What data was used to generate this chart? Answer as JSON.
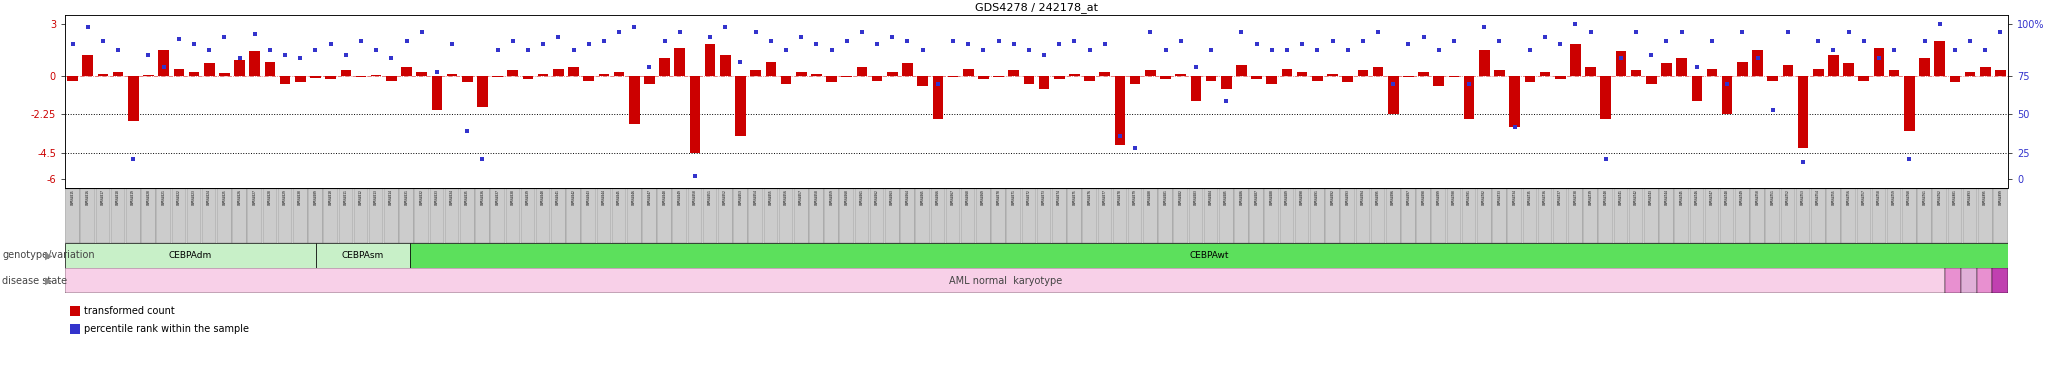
{
  "title": "GDS4278 / 242178_at",
  "left_ylim": [
    -6.5,
    3.5
  ],
  "left_yticks": [
    3,
    0,
    -2.25,
    -4.5,
    -6
  ],
  "right_yticks_labels": [
    "100%",
    "75",
    "50",
    "25",
    "0"
  ],
  "hlines": [
    -2.25,
    -4.5
  ],
  "bar_color": "#cc0000",
  "dot_color": "#3333cc",
  "left_axis_color": "#cc0000",
  "right_axis_color": "#3333cc",
  "sample_ids": [
    "GSM564615",
    "GSM564616",
    "GSM564617",
    "GSM564618",
    "GSM564619",
    "GSM564620",
    "GSM564621",
    "GSM564622",
    "GSM564623",
    "GSM564624",
    "GSM564625",
    "GSM564626",
    "GSM564627",
    "GSM564628",
    "GSM564629",
    "GSM564630",
    "GSM564609",
    "GSM564610",
    "GSM564611",
    "GSM564612",
    "GSM564613",
    "GSM564614",
    "GSM564631",
    "GSM564632",
    "GSM564633",
    "GSM564634",
    "GSM564635",
    "GSM564636",
    "GSM564637",
    "GSM564638",
    "GSM564639",
    "GSM564640",
    "GSM564641",
    "GSM564642",
    "GSM564643",
    "GSM564644",
    "GSM564645",
    "GSM564646",
    "GSM564647",
    "GSM564648",
    "GSM564649",
    "GSM564650",
    "GSM564651",
    "GSM564652",
    "GSM564653",
    "GSM564654",
    "GSM564655",
    "GSM564656",
    "GSM564657",
    "GSM564658",
    "GSM564659",
    "GSM564660",
    "GSM564661",
    "GSM564662",
    "GSM564663",
    "GSM564664",
    "GSM564665",
    "GSM564666",
    "GSM564667",
    "GSM564668",
    "GSM564669",
    "GSM564670",
    "GSM564671",
    "GSM564672",
    "GSM564673",
    "GSM564674",
    "GSM564675",
    "GSM564676",
    "GSM564677",
    "GSM564678",
    "GSM564679",
    "GSM564680",
    "GSM564681",
    "GSM564682",
    "GSM564683",
    "GSM564684",
    "GSM564685",
    "GSM564686",
    "GSM564687",
    "GSM564688",
    "GSM564689",
    "GSM564690",
    "GSM564691",
    "GSM564692",
    "GSM564693",
    "GSM564694",
    "GSM564695",
    "GSM564696",
    "GSM564697",
    "GSM564698",
    "GSM564699",
    "GSM564700",
    "GSM564701",
    "GSM564702",
    "GSM564733",
    "GSM564734",
    "GSM564735",
    "GSM564736",
    "GSM564737",
    "GSM564738",
    "GSM564739",
    "GSM564740",
    "GSM564741",
    "GSM564742",
    "GSM564743",
    "GSM564744",
    "GSM564745",
    "GSM564746",
    "GSM564747",
    "GSM564748",
    "GSM564749",
    "GSM564750",
    "GSM564751",
    "GSM564752",
    "GSM564753",
    "GSM564754",
    "GSM564755",
    "GSM564756",
    "GSM564757",
    "GSM564758",
    "GSM564759",
    "GSM564760",
    "GSM564761",
    "GSM564762",
    "GSM564881",
    "GSM564893",
    "GSM564895",
    "GSM564899"
  ],
  "bar_values": [
    -0.3,
    1.2,
    0.1,
    0.2,
    -2.6,
    0.05,
    1.5,
    0.4,
    0.2,
    0.7,
    0.15,
    0.9,
    1.4,
    0.8,
    -0.5,
    -0.4,
    -0.15,
    -0.2,
    0.3,
    -0.1,
    0.05,
    -0.3,
    0.5,
    0.2,
    -2.0,
    0.1,
    -0.4,
    -1.8,
    -0.1,
    0.3,
    -0.2,
    0.1,
    0.4,
    0.5,
    -0.3,
    0.1,
    0.2,
    -2.8,
    -0.5,
    1.0,
    1.6,
    -4.5,
    1.8,
    1.2,
    -3.5,
    0.3,
    0.8,
    -0.5,
    0.2,
    0.1,
    -0.4,
    -0.1,
    0.5,
    -0.3,
    0.2,
    0.7,
    -0.6,
    -2.5,
    -0.1,
    0.4,
    -0.2,
    -0.1,
    0.3,
    -0.5,
    -0.8,
    -0.2,
    0.1,
    -0.3,
    0.2,
    -4.0,
    -0.5,
    0.3,
    -0.2,
    0.1,
    -1.5,
    -0.3,
    -0.8,
    0.6,
    -0.2,
    -0.5,
    0.4,
    0.2,
    -0.3,
    0.1,
    -0.4,
    0.3,
    0.5,
    -2.2,
    -0.1,
    0.2,
    -0.6,
    -0.1,
    -2.5,
    1.5,
    0.3,
    -3.0,
    -0.4,
    0.2,
    -0.2,
    1.8,
    0.5,
    -2.5,
    1.4,
    0.3,
    -0.5,
    0.7,
    1.0,
    -1.5,
    0.4,
    -2.2,
    0.8,
    1.5,
    -0.3,
    0.6,
    -4.2,
    0.4,
    1.2,
    0.7,
    -0.3,
    1.6,
    0.3,
    -3.2,
    1.0,
    2.0,
    -0.4,
    0.2,
    0.5,
    0.3
  ],
  "dot_values": [
    1.8,
    2.8,
    2.0,
    1.5,
    -4.8,
    1.2,
    0.5,
    2.1,
    1.8,
    1.5,
    2.2,
    1.0,
    2.4,
    1.5,
    1.2,
    1.0,
    1.5,
    1.8,
    1.2,
    2.0,
    1.5,
    1.0,
    2.0,
    2.5,
    0.2,
    1.8,
    -3.2,
    -4.8,
    1.5,
    2.0,
    1.5,
    1.8,
    2.2,
    1.5,
    1.8,
    2.0,
    2.5,
    2.8,
    0.5,
    2.0,
    2.5,
    -5.8,
    2.2,
    2.8,
    0.8,
    2.5,
    2.0,
    1.5,
    2.2,
    1.8,
    1.5,
    2.0,
    2.5,
    1.8,
    2.2,
    2.0,
    1.5,
    -0.5,
    2.0,
    1.8,
    1.5,
    2.0,
    1.8,
    1.5,
    1.2,
    1.8,
    2.0,
    1.5,
    1.8,
    -3.5,
    -4.2,
    2.5,
    1.5,
    2.0,
    0.5,
    1.5,
    -1.5,
    2.5,
    1.8,
    1.5,
    1.5,
    1.8,
    1.5,
    2.0,
    1.5,
    2.0,
    2.5,
    -0.5,
    1.8,
    2.2,
    1.5,
    2.0,
    -0.5,
    2.8,
    2.0,
    -3.0,
    1.5,
    2.2,
    1.8,
    3.0,
    2.5,
    -4.8,
    1.0,
    2.5,
    1.2,
    2.0,
    2.5,
    0.5,
    2.0,
    -0.5,
    2.5,
    1.0,
    -2.0,
    2.5,
    -5.0,
    2.0,
    1.5,
    2.5,
    2.0,
    1.0,
    1.5,
    -4.8,
    2.0,
    3.0,
    1.5,
    2.0,
    1.5,
    2.5
  ],
  "n_cebpadm": 16,
  "n_cebpasm": 6,
  "n_cebpawt": 102,
  "color_cebpadm": "#c8f0c8",
  "color_cebpasm": "#c8f0c8",
  "color_cebpawt": "#5ce05c",
  "disease_color_main": "#f8d0e8",
  "disease_end_colors": [
    "#e890d0",
    "#e0b0d8",
    "#e890d0",
    "#c040b0"
  ],
  "legend_red": "transformed count",
  "legend_blue": "percentile rank within the sample",
  "label_genotype": "genotype/variation",
  "label_disease": "disease state",
  "disease_label": "AML normal  karyotype"
}
